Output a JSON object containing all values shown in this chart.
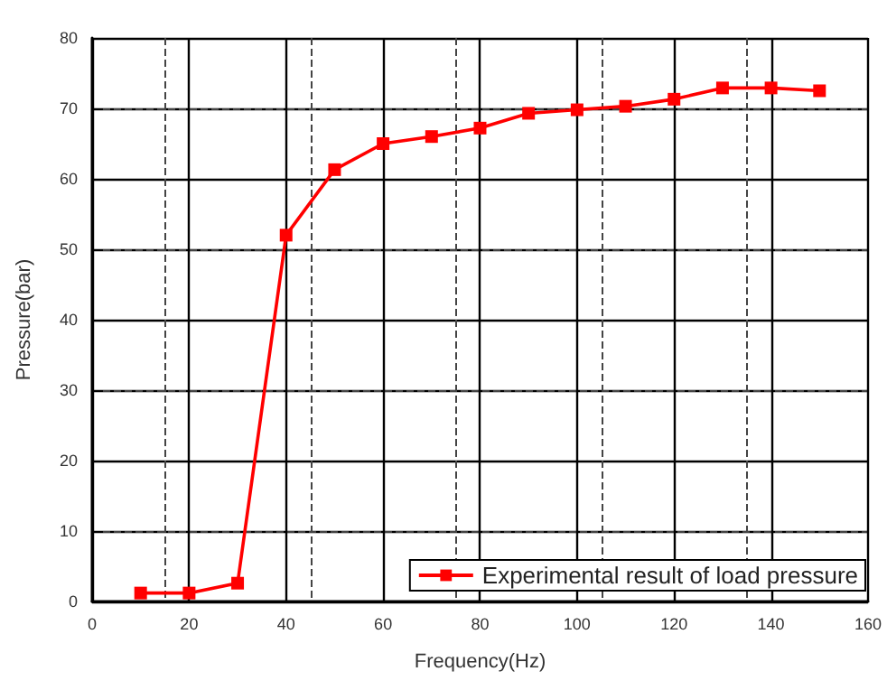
{
  "chart_data": {
    "type": "line",
    "xlabel": "Frequency(Hz)",
    "ylabel": "Pressure(bar)",
    "x": [
      10,
      20,
      30,
      40,
      50,
      60,
      70,
      80,
      90,
      100,
      110,
      120,
      130,
      140,
      150
    ],
    "series": [
      {
        "name": "Experimental result of load pressure",
        "color": "#ff0000",
        "values": [
          1.2,
          1.2,
          2.6,
          52,
          61.3,
          65,
          66,
          67.2,
          69.3,
          69.8,
          70.3,
          71.3,
          72.9,
          72.9,
          72.5
        ]
      }
    ],
    "xlim": [
      0,
      160
    ],
    "xticks": [
      0,
      20,
      40,
      60,
      80,
      100,
      120,
      140,
      160
    ],
    "ylim": [
      0,
      80
    ],
    "yticks": [
      0,
      10,
      20,
      30,
      40,
      50,
      60,
      70,
      80
    ],
    "grid": true,
    "legend": "bottom right",
    "marker": "square",
    "line_style": "solid"
  }
}
